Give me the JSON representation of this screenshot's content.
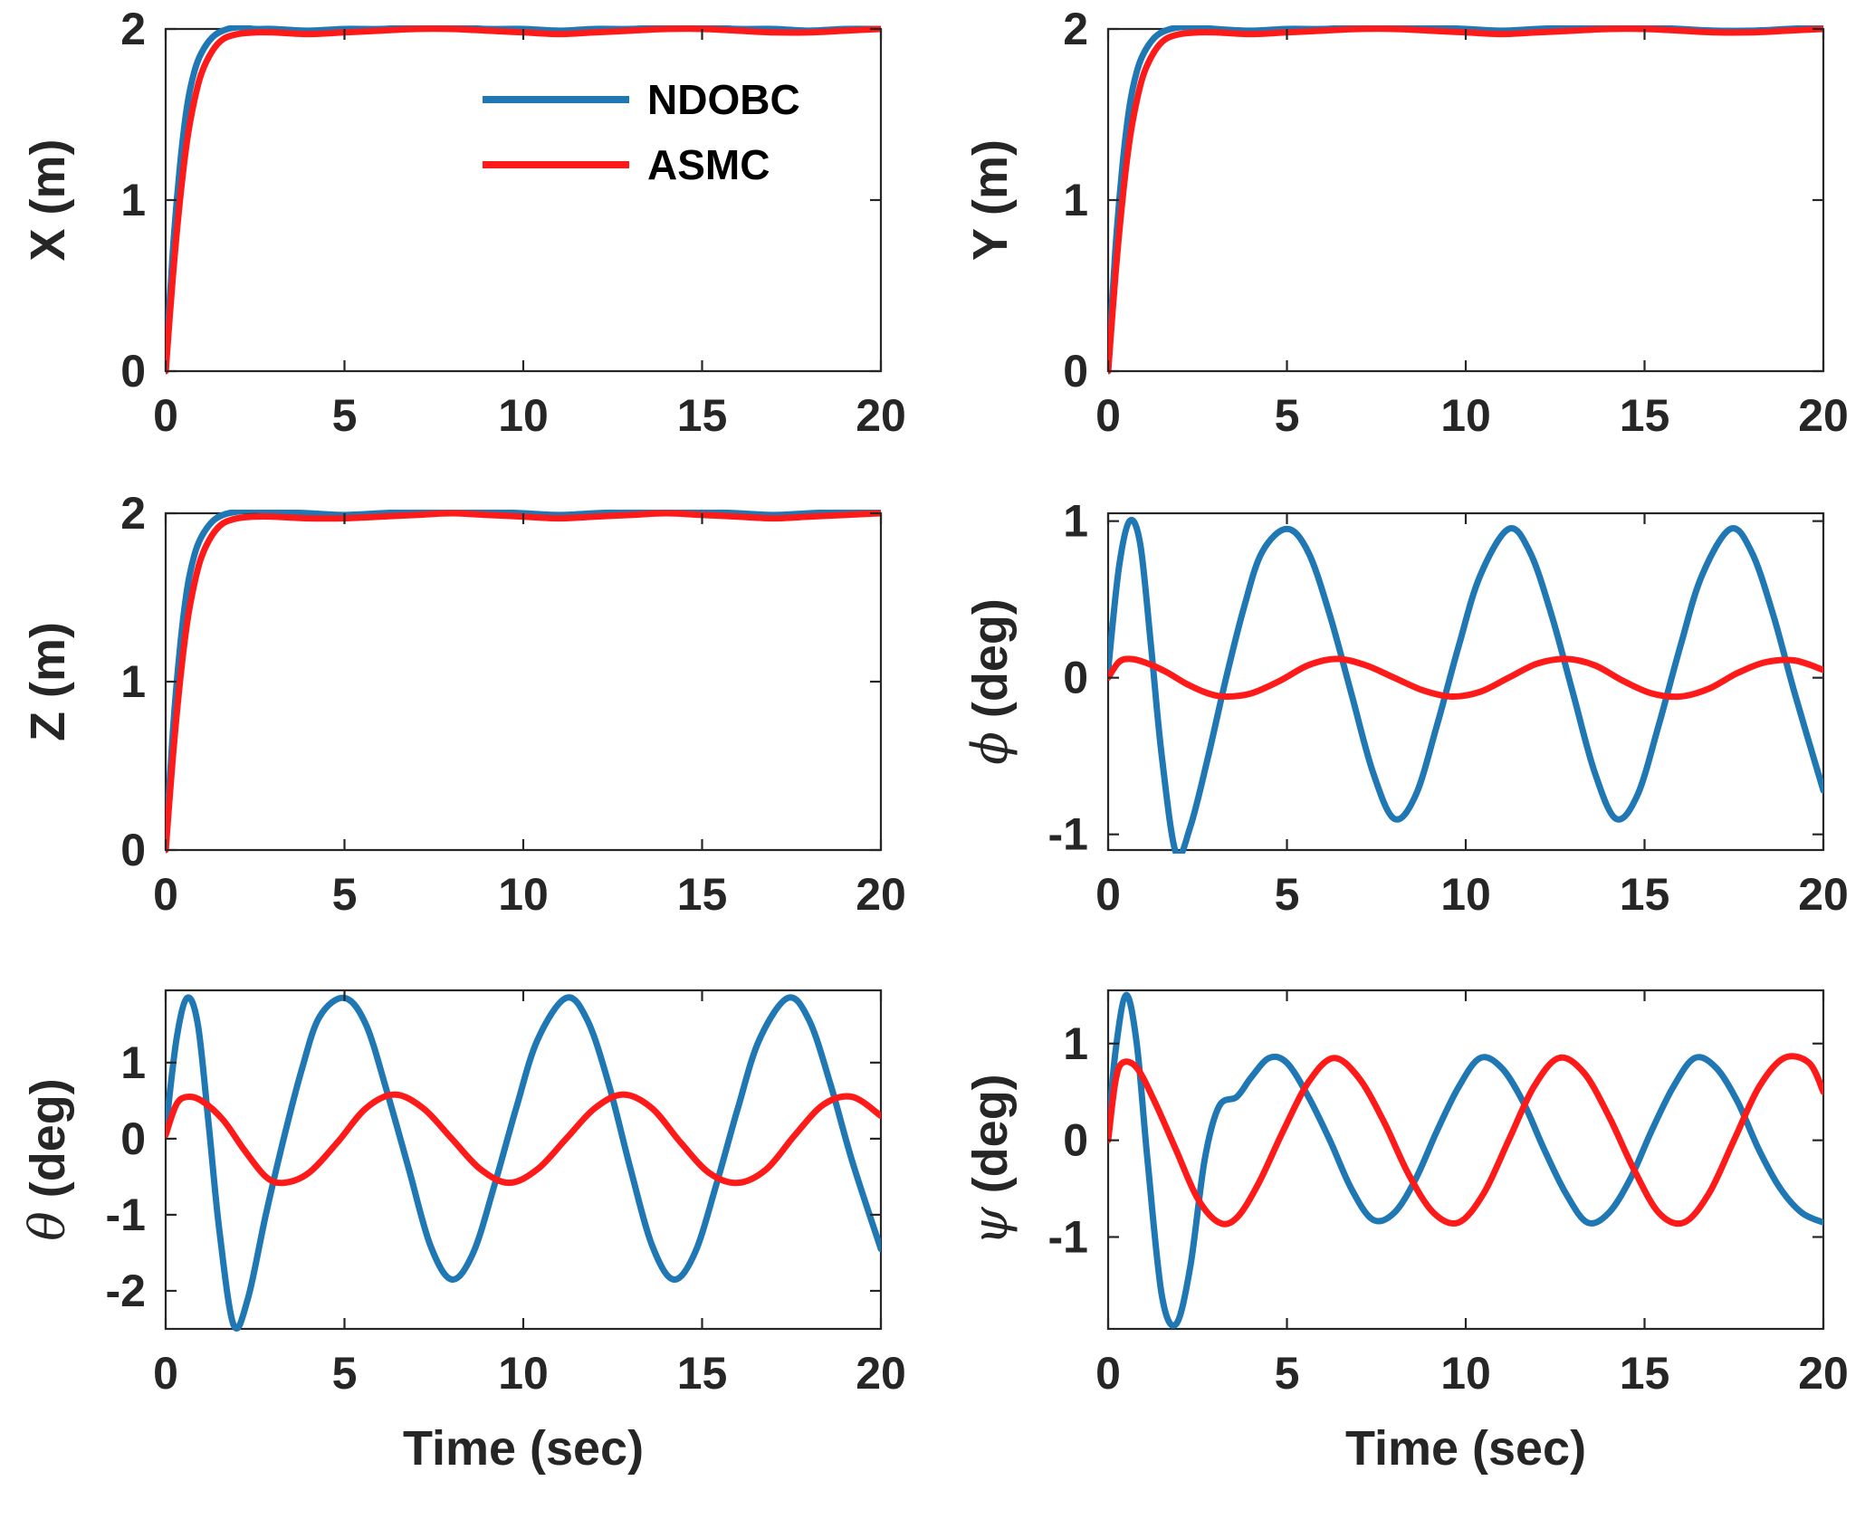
{
  "legend": {
    "entries": [
      {
        "name": "NDOBC",
        "color": "#1f77b4"
      },
      {
        "name": "ASMC",
        "color": "#ff1a1a"
      }
    ]
  },
  "chart_data": [
    {
      "type": "line",
      "panel": "X",
      "ylabel": "X (m)",
      "xlabel": "",
      "xlim": [
        0,
        20
      ],
      "ylim": [
        0,
        2
      ],
      "xticks": [
        0,
        5,
        10,
        15,
        20
      ],
      "yticks": [
        0,
        1,
        2
      ],
      "series": [
        {
          "name": "NDOBC",
          "color": "#1f77b4",
          "x": [
            0,
            0.2,
            0.4,
            0.6,
            0.8,
            1.0,
            1.3,
            1.6,
            2.0,
            2.5,
            3,
            4,
            5,
            6,
            7,
            8,
            9,
            10,
            11,
            12,
            13,
            14,
            15,
            16,
            17,
            18,
            19,
            20
          ],
          "y": [
            0,
            0.7,
            1.2,
            1.55,
            1.75,
            1.86,
            1.95,
            1.99,
            2.01,
            2.0,
            2.0,
            1.99,
            2.0,
            2.0,
            2.01,
            2.01,
            2.0,
            2.0,
            1.99,
            2.0,
            2.0,
            2.01,
            2.01,
            2.0,
            2.0,
            1.99,
            2.0,
            2.0
          ]
        },
        {
          "name": "ASMC",
          "color": "#ff1a1a",
          "x": [
            0,
            0.2,
            0.4,
            0.6,
            0.8,
            1.0,
            1.3,
            1.6,
            2.0,
            2.5,
            3,
            4,
            5,
            6,
            7,
            8,
            9,
            10,
            11,
            12,
            13,
            14,
            15,
            16,
            17,
            18,
            19,
            20
          ],
          "y": [
            0,
            0.55,
            1.0,
            1.35,
            1.58,
            1.74,
            1.87,
            1.94,
            1.97,
            1.98,
            1.98,
            1.97,
            1.98,
            1.99,
            2.0,
            2.0,
            1.99,
            1.98,
            1.97,
            1.98,
            1.99,
            2.0,
            2.0,
            1.99,
            1.98,
            1.98,
            1.99,
            2.0
          ]
        }
      ]
    },
    {
      "type": "line",
      "panel": "Y",
      "ylabel": "Y (m)",
      "xlabel": "",
      "xlim": [
        0,
        20
      ],
      "ylim": [
        0,
        2
      ],
      "xticks": [
        0,
        5,
        10,
        15,
        20
      ],
      "yticks": [
        0,
        1,
        2
      ],
      "series": [
        {
          "name": "NDOBC",
          "color": "#1f77b4",
          "x": [
            0,
            0.2,
            0.4,
            0.6,
            0.8,
            1.0,
            1.3,
            1.6,
            2.0,
            2.5,
            3,
            4,
            5,
            6,
            7,
            8,
            9,
            10,
            11,
            12,
            13,
            14,
            15,
            16,
            17,
            18,
            19,
            20
          ],
          "y": [
            0,
            0.7,
            1.2,
            1.55,
            1.75,
            1.86,
            1.95,
            1.99,
            2.01,
            2.01,
            2.0,
            1.99,
            2.0,
            2.0,
            2.01,
            2.02,
            2.01,
            2.0,
            1.99,
            2.0,
            2.01,
            2.02,
            2.01,
            2.0,
            1.99,
            1.99,
            2.0,
            2.01
          ]
        },
        {
          "name": "ASMC",
          "color": "#ff1a1a",
          "x": [
            0,
            0.2,
            0.4,
            0.6,
            0.8,
            1.0,
            1.3,
            1.6,
            2.0,
            2.5,
            3,
            4,
            5,
            6,
            7,
            8,
            9,
            10,
            11,
            12,
            13,
            14,
            15,
            16,
            17,
            18,
            19,
            20
          ],
          "y": [
            0,
            0.55,
            1.0,
            1.35,
            1.58,
            1.74,
            1.87,
            1.94,
            1.97,
            1.98,
            1.98,
            1.97,
            1.98,
            1.99,
            2.0,
            2.0,
            1.99,
            1.98,
            1.97,
            1.98,
            1.99,
            2.0,
            2.0,
            1.99,
            1.98,
            1.98,
            1.99,
            2.0
          ]
        }
      ]
    },
    {
      "type": "line",
      "panel": "Z",
      "ylabel": "Z (m)",
      "xlabel": "",
      "xlim": [
        0,
        20
      ],
      "ylim": [
        0,
        2
      ],
      "xticks": [
        0,
        5,
        10,
        15,
        20
      ],
      "yticks": [
        0,
        1,
        2
      ],
      "series": [
        {
          "name": "NDOBC",
          "color": "#1f77b4",
          "x": [
            0,
            0.2,
            0.4,
            0.6,
            0.8,
            1.0,
            1.3,
            1.6,
            2.0,
            2.5,
            3,
            4,
            5,
            6,
            7,
            8,
            9,
            10,
            11,
            12,
            13,
            14,
            15,
            16,
            17,
            18,
            19,
            20
          ],
          "y": [
            0,
            0.7,
            1.2,
            1.55,
            1.75,
            1.86,
            1.95,
            1.99,
            2.01,
            2.02,
            2.01,
            2.0,
            1.99,
            2.0,
            2.01,
            2.02,
            2.01,
            2.0,
            1.99,
            2.0,
            2.01,
            2.02,
            2.01,
            2.0,
            1.99,
            2.0,
            2.01,
            2.01
          ]
        },
        {
          "name": "ASMC",
          "color": "#ff1a1a",
          "x": [
            0,
            0.2,
            0.4,
            0.6,
            0.8,
            1.0,
            1.3,
            1.6,
            2.0,
            2.5,
            3,
            4,
            5,
            6,
            7,
            8,
            9,
            10,
            11,
            12,
            13,
            14,
            15,
            16,
            17,
            18,
            19,
            20
          ],
          "y": [
            0,
            0.55,
            1.0,
            1.35,
            1.58,
            1.74,
            1.87,
            1.94,
            1.97,
            1.98,
            1.98,
            1.97,
            1.97,
            1.98,
            1.99,
            2.0,
            1.99,
            1.98,
            1.97,
            1.98,
            1.99,
            2.0,
            1.99,
            1.98,
            1.97,
            1.98,
            1.99,
            2.0
          ]
        }
      ]
    },
    {
      "type": "line",
      "panel": "phi",
      "ylabel_symbol": "ϕ",
      "ylabel_text": " (deg)",
      "xlabel": "",
      "xlim": [
        0,
        20
      ],
      "ylim": [
        -1.1,
        1.05
      ],
      "xticks": [
        0,
        5,
        10,
        15,
        20
      ],
      "yticks": [
        -1,
        0,
        1
      ],
      "series": [
        {
          "name": "NDOBC",
          "color": "#1f77b4",
          "x": [
            0,
            0.3,
            0.6,
            0.9,
            1.2,
            1.5,
            1.9,
            2.3,
            2.8,
            3.3,
            3.8,
            4.3,
            5.0,
            5.6,
            6.2,
            6.8,
            7.4,
            8.0,
            8.6,
            9.2,
            9.8,
            10.4,
            11.2,
            11.8,
            12.4,
            13.0,
            13.6,
            14.2,
            14.8,
            15.4,
            16.0,
            16.6,
            17.4,
            18.0,
            18.6,
            19.2,
            20.0
          ],
          "y": [
            0.05,
            0.7,
            1.0,
            0.85,
            0.2,
            -0.5,
            -1.12,
            -0.95,
            -0.5,
            0.0,
            0.45,
            0.8,
            0.95,
            0.8,
            0.4,
            -0.1,
            -0.6,
            -0.9,
            -0.75,
            -0.3,
            0.2,
            0.65,
            0.95,
            0.8,
            0.4,
            -0.1,
            -0.6,
            -0.9,
            -0.75,
            -0.3,
            0.2,
            0.65,
            0.95,
            0.8,
            0.4,
            -0.1,
            -0.72
          ]
        },
        {
          "name": "ASMC",
          "color": "#ff1a1a",
          "x": [
            0,
            0.3,
            0.6,
            1.0,
            1.6,
            2.2,
            2.8,
            3.3,
            4.0,
            4.8,
            5.6,
            6.4,
            7.2,
            8.0,
            8.8,
            9.6,
            10.4,
            11.2,
            12.0,
            12.8,
            13.6,
            14.4,
            15.2,
            16.0,
            16.8,
            17.6,
            18.4,
            19.2,
            20.0
          ],
          "y": [
            0.0,
            0.1,
            0.12,
            0.1,
            0.04,
            -0.04,
            -0.1,
            -0.12,
            -0.1,
            -0.02,
            0.08,
            0.12,
            0.08,
            0.0,
            -0.08,
            -0.12,
            -0.09,
            0.0,
            0.09,
            0.12,
            0.08,
            -0.02,
            -0.1,
            -0.12,
            -0.07,
            0.03,
            0.1,
            0.11,
            0.05
          ]
        }
      ]
    },
    {
      "type": "line",
      "panel": "theta",
      "ylabel_symbol": "θ",
      "ylabel_text": " (deg)",
      "xlabel": "Time (sec)",
      "xlim": [
        0,
        20
      ],
      "ylim": [
        -2.5,
        1.95
      ],
      "xticks": [
        0,
        5,
        10,
        15,
        20
      ],
      "yticks": [
        -2,
        -1,
        0,
        1
      ],
      "series": [
        {
          "name": "NDOBC",
          "color": "#1f77b4",
          "x": [
            0,
            0.3,
            0.6,
            0.9,
            1.2,
            1.5,
            1.9,
            2.3,
            2.8,
            3.3,
            3.8,
            4.3,
            5.0,
            5.6,
            6.2,
            6.8,
            7.4,
            8.0,
            8.6,
            9.2,
            9.8,
            10.4,
            11.2,
            11.8,
            12.4,
            13.0,
            13.6,
            14.2,
            14.8,
            15.4,
            16.0,
            16.6,
            17.4,
            18.0,
            18.6,
            19.2,
            20.0
          ],
          "y": [
            0.1,
            1.3,
            1.85,
            1.5,
            0.2,
            -1.2,
            -2.45,
            -2.1,
            -1.0,
            0.0,
            0.9,
            1.6,
            1.85,
            1.5,
            0.6,
            -0.4,
            -1.4,
            -1.85,
            -1.5,
            -0.6,
            0.4,
            1.3,
            1.85,
            1.55,
            0.7,
            -0.4,
            -1.4,
            -1.85,
            -1.5,
            -0.6,
            0.4,
            1.3,
            1.85,
            1.55,
            0.7,
            -0.3,
            -1.45
          ]
        },
        {
          "name": "ASMC",
          "color": "#ff1a1a",
          "x": [
            0,
            0.3,
            0.6,
            1.0,
            1.6,
            2.2,
            2.8,
            3.3,
            4.0,
            4.8,
            5.6,
            6.4,
            7.2,
            8.0,
            8.8,
            9.6,
            10.4,
            11.2,
            12.0,
            12.8,
            13.6,
            14.4,
            15.2,
            16.0,
            16.8,
            17.6,
            18.4,
            19.2,
            20.0
          ],
          "y": [
            0.05,
            0.45,
            0.55,
            0.5,
            0.25,
            -0.15,
            -0.5,
            -0.58,
            -0.45,
            -0.05,
            0.4,
            0.58,
            0.4,
            0.0,
            -0.4,
            -0.58,
            -0.4,
            0.0,
            0.4,
            0.58,
            0.4,
            -0.05,
            -0.45,
            -0.58,
            -0.4,
            0.05,
            0.45,
            0.55,
            0.3
          ]
        }
      ]
    },
    {
      "type": "line",
      "panel": "psi",
      "ylabel_symbol": "ψ",
      "ylabel_text": " (deg)",
      "xlabel": "Time (sec)",
      "xlim": [
        0,
        20
      ],
      "ylim": [
        -1.95,
        1.55
      ],
      "xticks": [
        0,
        5,
        10,
        15,
        20
      ],
      "yticks": [
        -1,
        0,
        1
      ],
      "series": [
        {
          "name": "NDOBC",
          "color": "#1f77b4",
          "x": [
            0,
            0.2,
            0.5,
            0.8,
            1.1,
            1.5,
            1.9,
            2.3,
            2.7,
            3.1,
            3.6,
            4.0,
            4.5,
            5.0,
            5.6,
            6.2,
            6.8,
            7.4,
            8.0,
            8.6,
            9.2,
            9.8,
            10.4,
            11.0,
            11.6,
            12.2,
            12.8,
            13.4,
            14.0,
            14.6,
            15.2,
            15.8,
            16.4,
            17.0,
            17.6,
            18.2,
            18.8,
            19.4,
            20.0
          ],
          "y": [
            0.05,
            0.9,
            1.5,
            1.0,
            -0.2,
            -1.6,
            -1.9,
            -1.3,
            -0.2,
            0.35,
            0.45,
            0.65,
            0.85,
            0.8,
            0.45,
            0.0,
            -0.5,
            -0.82,
            -0.75,
            -0.4,
            0.1,
            0.55,
            0.85,
            0.75,
            0.4,
            -0.1,
            -0.55,
            -0.85,
            -0.75,
            -0.4,
            0.1,
            0.55,
            0.85,
            0.75,
            0.4,
            -0.1,
            -0.5,
            -0.75,
            -0.85
          ]
        },
        {
          "name": "ASMC",
          "color": "#ff1a1a",
          "x": [
            0,
            0.2,
            0.4,
            0.8,
            1.3,
            1.9,
            2.5,
            3.1,
            3.6,
            4.2,
            4.9,
            5.6,
            6.3,
            7.0,
            7.7,
            8.4,
            9.1,
            9.8,
            10.5,
            11.2,
            11.9,
            12.6,
            13.3,
            14.0,
            14.7,
            15.4,
            16.1,
            16.8,
            17.5,
            18.2,
            18.9,
            19.6,
            20.0
          ],
          "y": [
            0.0,
            0.6,
            0.8,
            0.75,
            0.4,
            -0.1,
            -0.6,
            -0.85,
            -0.8,
            -0.45,
            0.1,
            0.6,
            0.85,
            0.65,
            0.2,
            -0.35,
            -0.75,
            -0.85,
            -0.55,
            0.0,
            0.55,
            0.85,
            0.7,
            0.25,
            -0.3,
            -0.75,
            -0.85,
            -0.55,
            0.0,
            0.55,
            0.85,
            0.8,
            0.5
          ]
        }
      ]
    }
  ]
}
